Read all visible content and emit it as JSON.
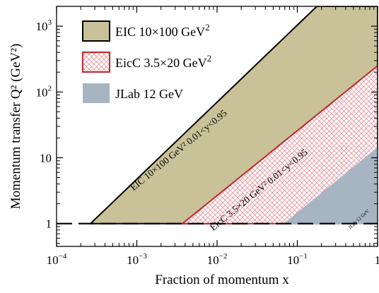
{
  "chart_data": {
    "type": "area",
    "title": "",
    "xlabel": "Fraction of momentum x",
    "ylabel": "Momentum transfer Q² (GeV²)",
    "xscale": "log",
    "yscale": "log",
    "xlim": [
      0.0001,
      1
    ],
    "ylim": [
      0.45,
      2000
    ],
    "grid": false,
    "legend_position": "top-left",
    "x_ticks": [
      {
        "value": 0.0001,
        "base": "10",
        "exp": "−4"
      },
      {
        "value": 0.001,
        "base": "10",
        "exp": "−3"
      },
      {
        "value": 0.01,
        "base": "10",
        "exp": "−2"
      },
      {
        "value": 0.1,
        "base": "10",
        "exp": "−1"
      },
      {
        "value": 1,
        "base": "1",
        "exp": ""
      }
    ],
    "y_ticks": [
      {
        "value": 1,
        "base": "1",
        "exp": ""
      },
      {
        "value": 10,
        "base": "10",
        "exp": ""
      },
      {
        "value": 100,
        "base": "10",
        "exp": "2"
      },
      {
        "value": 1000,
        "base": "10",
        "exp": "3"
      }
    ],
    "series": [
      {
        "name": "EIC 10×100 GeV²",
        "color": "#c9c299",
        "border": "#000000",
        "fill": "solid",
        "region": [
          [
            0.000265,
            1
          ],
          [
            0.175,
            2000
          ],
          [
            1,
            2000
          ],
          [
            1,
            40
          ],
          [
            0.025,
            1
          ]
        ],
        "band_label": "EIC 10×100 GeV² 0.01<y<0.95",
        "band_label_at": [
          0.0035,
          12
        ]
      },
      {
        "name": "EicC 3.5×20 GeV²",
        "color": "#ffffff",
        "border": "#c0282d",
        "hatch_color": "#e05a6a",
        "fill": "hatched",
        "region": [
          [
            0.0037,
            1
          ],
          [
            1,
            250
          ],
          [
            1,
            1.2
          ],
          [
            0.33,
            1
          ]
        ],
        "band_label": "EicC 3.5×20 GeV² 0.01<y<0.95",
        "band_label_at": [
          0.035,
          3.0
        ]
      },
      {
        "name": "JLab 12 GeV",
        "color": "#a6b5c1",
        "border": "#a6b5c1",
        "fill": "solid",
        "region": [
          [
            0.07,
            1
          ],
          [
            1,
            14
          ],
          [
            1,
            1
          ],
          [
            0.7,
            1
          ]
        ],
        "band_label": "JLab 12 GeV",
        "band_label_at": [
          0.6,
          1.12
        ]
      }
    ],
    "reference_lines": [
      {
        "y": 1,
        "style": "dashed",
        "color": "#000000"
      }
    ],
    "legend_entries": [
      {
        "label": "EIC 10×100 GeV",
        "sup": "2",
        "swatch": "eic"
      },
      {
        "label": "EicC 3.5×20 GeV",
        "sup": "2",
        "swatch": "eicc"
      },
      {
        "label": "JLab 12 GeV",
        "sup": "",
        "swatch": "jlab"
      }
    ]
  }
}
